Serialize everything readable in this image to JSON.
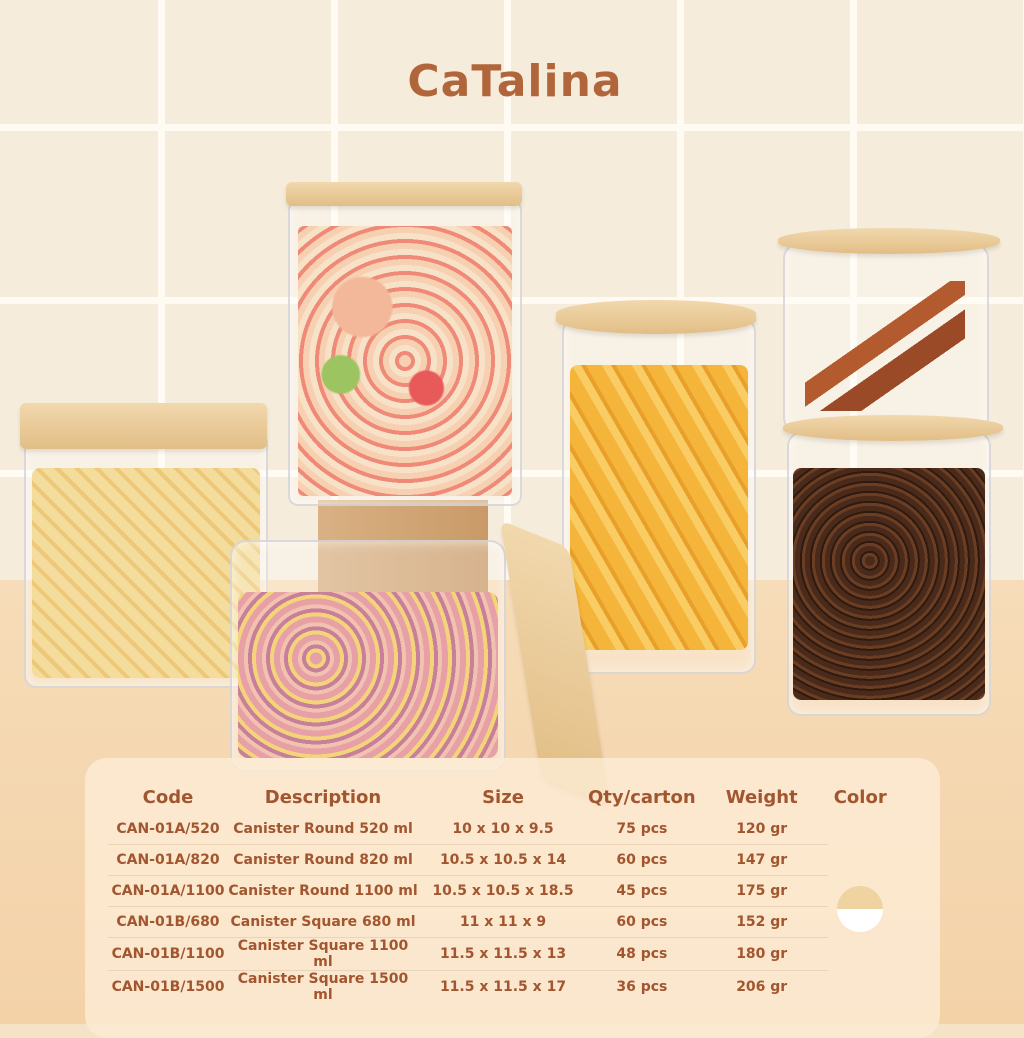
{
  "brand": {
    "logo_text": "CaTalina",
    "color": "#b0653a"
  },
  "table": {
    "headers": [
      "Code",
      "Description",
      "Size",
      "Qty/carton",
      "Weight",
      "Color"
    ],
    "rows": [
      {
        "code": "CAN-01A/520",
        "description": "Canister Round 520 ml",
        "size": "10 x 10 x 9.5",
        "qty": "75 pcs",
        "weight": "120 gr"
      },
      {
        "code": "CAN-01A/820",
        "description": "Canister Round 820 ml",
        "size": "10.5 x 10.5 x 14",
        "qty": "60 pcs",
        "weight": "147 gr"
      },
      {
        "code": "CAN-01A/1100",
        "description": "Canister Round 1100 ml",
        "size": "10.5 x 10.5 x 18.5",
        "qty": "45 pcs",
        "weight": "175 gr"
      },
      {
        "code": "CAN-01B/680",
        "description": "Canister Square 680 ml",
        "size": "11 x 11 x 9",
        "qty": "60 pcs",
        "weight": "152 gr"
      },
      {
        "code": "CAN-01B/1100",
        "description": "Canister Square 1100 ml",
        "size": "11.5 x 11.5 x 13",
        "qty": "48 pcs",
        "weight": "180 gr"
      },
      {
        "code": "CAN-01B/1500",
        "description": "Canister Square 1500 ml",
        "size": "11.5 x 11.5 x 17",
        "qty": "36 pcs",
        "weight": "206 gr"
      }
    ],
    "color_swatch": {
      "top": "#efd3a0",
      "bottom": "#ffffff"
    },
    "text_color": "#a2562f"
  }
}
